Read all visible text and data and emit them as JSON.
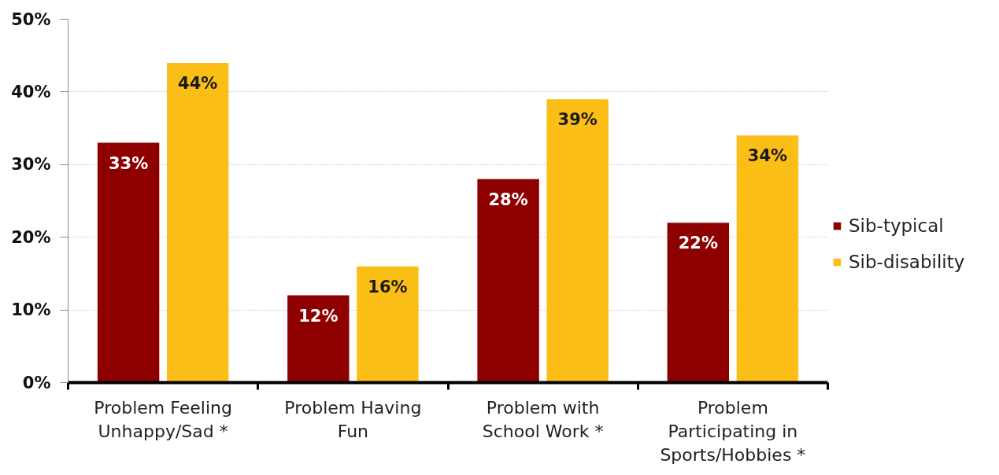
{
  "chart_data": {
    "type": "bar",
    "categories": [
      "Problem Feeling Unhappy/Sad *",
      "Problem Having Fun",
      "Problem with School Work *",
      "Problem Participating in Sports/Hobbies *"
    ],
    "series": [
      {
        "name": "Sib-typical",
        "color": "#8e0000",
        "values": [
          33,
          12,
          28,
          22
        ],
        "value_labels": [
          "33%",
          "12%",
          "28%",
          "22%"
        ]
      },
      {
        "name": "Sib-disability",
        "color": "#fbbe17",
        "values": [
          44,
          16,
          39,
          34
        ],
        "value_labels": [
          "44%",
          "16%",
          "39%",
          "34%"
        ]
      }
    ],
    "ylim": [
      0,
      50
    ],
    "yticks": [
      {
        "value": 0,
        "label": "0%"
      },
      {
        "value": 10,
        "label": "10%"
      },
      {
        "value": 20,
        "label": "20%"
      },
      {
        "value": 30,
        "label": "30%"
      },
      {
        "value": 40,
        "label": "40%"
      },
      {
        "value": 50,
        "label": "50%"
      }
    ],
    "grid": "y",
    "legend": "right"
  }
}
